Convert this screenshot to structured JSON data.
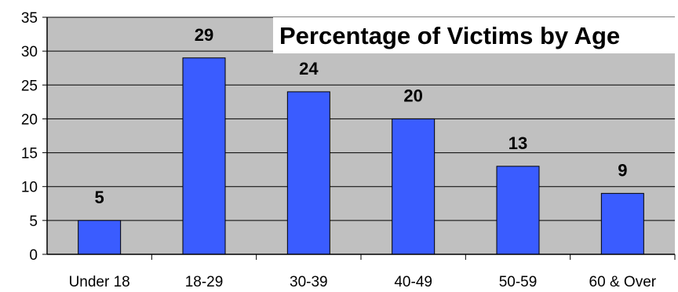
{
  "chart_data": {
    "type": "bar",
    "title": "Percentage of Victims by Age",
    "categories": [
      "Under 18",
      "18-29",
      "30-39",
      "40-49",
      "50-59",
      "60 & Over"
    ],
    "values": [
      5,
      29,
      24,
      20,
      13,
      9
    ],
    "xlabel": "",
    "ylabel": "",
    "ylim": [
      0,
      35
    ],
    "yticks": [
      0,
      5,
      10,
      15,
      20,
      25,
      30,
      35
    ],
    "grid": true,
    "legend": "none",
    "colors": {
      "bar": "#3a5cff",
      "bar_edge": "#000000",
      "plot_background": "#c0c0c0",
      "title_background": "#ffffff",
      "gridline": "#000000"
    }
  }
}
